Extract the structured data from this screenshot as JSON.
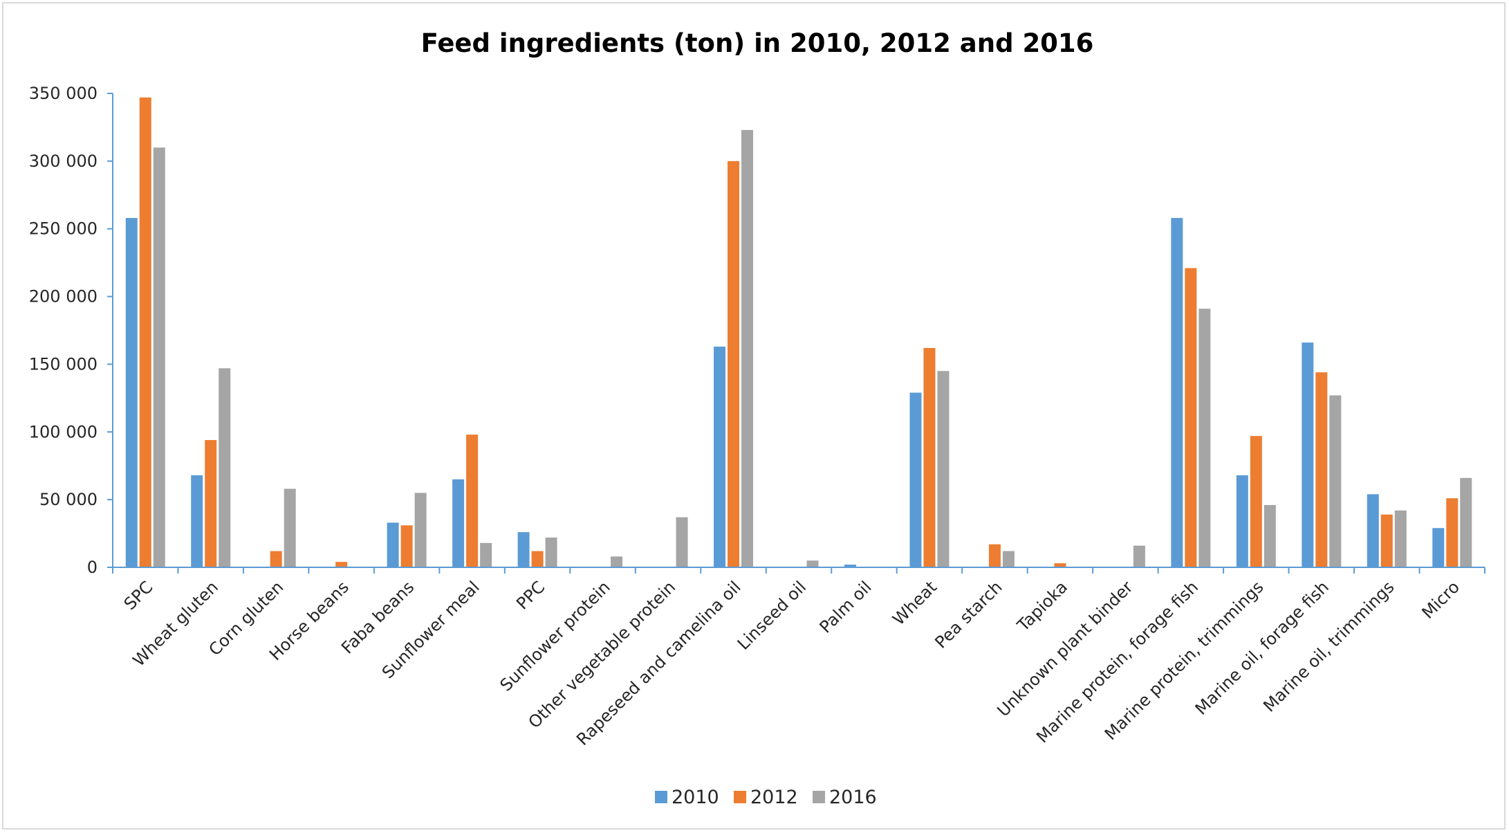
{
  "chart_data": {
    "type": "bar",
    "title": "Feed ingredients (ton) in 2010, 2012 and 2016",
    "xlabel": "",
    "ylabel": "",
    "ylim": [
      0,
      350000
    ],
    "yticks": [
      0,
      50000,
      100000,
      150000,
      200000,
      250000,
      300000,
      350000
    ],
    "ytick_labels": [
      "0",
      "50 000",
      "100 000",
      "150 000",
      "200 000",
      "250 000",
      "300 000",
      "350 000"
    ],
    "grid": false,
    "legend_position": "bottom",
    "categories": [
      "SPC",
      "Wheat gluten",
      "Corn gluten",
      "Horse beans",
      "Faba beans",
      "Sunflower meal",
      "PPC",
      "Sunflower protein",
      "Other vegetable protein",
      "Rapeseed and camelina oil",
      "Linseed oil",
      "Palm oil",
      "Wheat",
      "Pea starch",
      "Tapioka",
      "Unknown plant binder",
      "Marine protein, forage fish",
      "Marine protein, trimmings",
      "Marine oil, forage fish",
      "Marine oil, trimmings",
      "Micro"
    ],
    "series": [
      {
        "name": "2010",
        "color": "#5b9bd5",
        "values": [
          258000,
          68000,
          0,
          0,
          33000,
          65000,
          26000,
          0,
          0,
          163000,
          0,
          2000,
          129000,
          0,
          0,
          0,
          258000,
          68000,
          166000,
          54000,
          29000
        ]
      },
      {
        "name": "2012",
        "color": "#ed7d31",
        "values": [
          347000,
          94000,
          12000,
          4000,
          31000,
          98000,
          12000,
          0,
          0,
          300000,
          0,
          0,
          162000,
          17000,
          3000,
          0,
          221000,
          97000,
          144000,
          39000,
          51000
        ]
      },
      {
        "name": "2016",
        "color": "#a5a5a5",
        "values": [
          310000,
          147000,
          58000,
          0,
          55000,
          18000,
          22000,
          8000,
          37000,
          323000,
          5000,
          0,
          145000,
          12000,
          0,
          16000,
          191000,
          46000,
          127000,
          42000,
          66000
        ]
      }
    ],
    "axis_color": "#5b9bd5"
  }
}
